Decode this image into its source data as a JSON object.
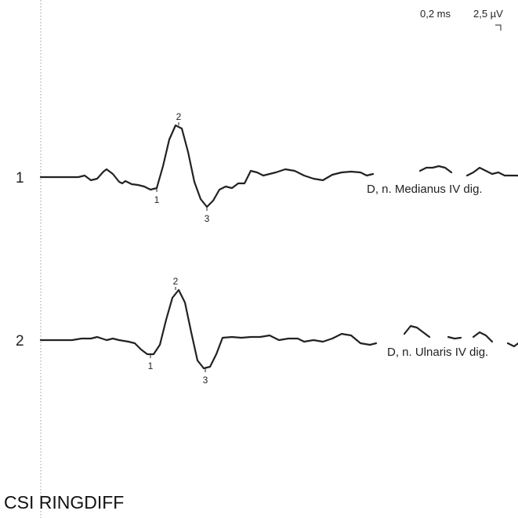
{
  "chart_data": {
    "type": "line",
    "title": "CSI RINGDIFF",
    "scale": {
      "time_per_div": "0,2 ms",
      "amplitude_per_div": "2,5 µV"
    },
    "series": [
      {
        "channel": "1",
        "name": "D, n. Medianus IV dig.",
        "x": [
          0,
          0.24,
          0.28,
          0.32,
          0.36,
          0.4,
          0.42,
          0.46,
          0.5,
          0.52,
          0.54,
          0.58,
          0.62,
          0.66,
          0.7,
          0.74,
          0.78,
          0.82,
          0.86,
          0.9,
          0.94,
          0.98,
          1.02,
          1.06,
          1.1,
          1.14,
          1.18,
          1.22,
          1.26,
          1.3,
          1.34,
          1.38,
          1.42,
          1.46,
          1.5,
          1.56,
          1.62,
          1.68,
          1.74,
          1.8,
          1.86,
          1.92,
          1.98,
          2.04,
          2.08,
          2.12
        ],
        "y": [
          0,
          0,
          0.08,
          -0.16,
          -0.08,
          0.28,
          0.4,
          0.16,
          -0.24,
          -0.32,
          -0.2,
          -0.36,
          -0.4,
          -0.48,
          -0.64,
          -0.56,
          0.56,
          1.92,
          2.64,
          2.48,
          1.28,
          -0.24,
          -1.12,
          -1.52,
          -1.2,
          -0.64,
          -0.48,
          -0.56,
          -0.32,
          -0.32,
          0.32,
          0.24,
          0.08,
          0.16,
          0.24,
          0.4,
          0.32,
          0.08,
          -0.08,
          -0.16,
          0.12,
          0.24,
          0.28,
          0.24,
          0.08,
          0.16
        ],
        "peaks": [
          {
            "label": "1",
            "x": 0.74,
            "y": -0.56
          },
          {
            "label": "2",
            "x": 0.88,
            "y": 2.64
          },
          {
            "label": "3",
            "x": 1.06,
            "y": -1.52
          }
        ]
      },
      {
        "channel": "2",
        "name": "D, n. Ulnaris IV dig.",
        "x": [
          0,
          0.1,
          0.2,
          0.26,
          0.32,
          0.36,
          0.42,
          0.46,
          0.5,
          0.56,
          0.6,
          0.64,
          0.68,
          0.72,
          0.76,
          0.8,
          0.84,
          0.88,
          0.92,
          0.96,
          1,
          1.04,
          1.08,
          1.12,
          1.16,
          1.22,
          1.28,
          1.34,
          1.4,
          1.46,
          1.52,
          1.58,
          1.64,
          1.68,
          1.74,
          1.8,
          1.86,
          1.92,
          1.98,
          2.04,
          2.1,
          2.14
        ],
        "y": [
          0,
          0,
          0,
          0.08,
          0.08,
          0.16,
          0,
          0.08,
          0,
          -0.08,
          -0.16,
          -0.48,
          -0.72,
          -0.72,
          -0.24,
          1.04,
          2.16,
          2.56,
          1.92,
          0.4,
          -1.04,
          -1.44,
          -1.36,
          -0.72,
          0.12,
          0.16,
          0.12,
          0.16,
          0.16,
          0.24,
          0,
          0.08,
          0.08,
          -0.08,
          0,
          -0.08,
          0.08,
          0.32,
          0.24,
          -0.16,
          -0.24,
          -0.16
        ],
        "peaks": [
          {
            "label": "1",
            "x": 0.7,
            "y": -0.72
          },
          {
            "label": "2",
            "x": 0.86,
            "y": 2.56
          },
          {
            "label": "3",
            "x": 1.05,
            "y": -1.44
          }
        ]
      }
    ],
    "extra_segments": [
      {
        "channel": "1",
        "x": [
          2.42,
          2.46,
          2.5,
          2.54,
          2.58,
          2.62
        ],
        "y": [
          0.32,
          0.48,
          0.48,
          0.56,
          0.48,
          0.24
        ]
      },
      {
        "channel": "1",
        "x": [
          2.72,
          2.76,
          2.8,
          2.84,
          2.88,
          2.92,
          2.96,
          3.0,
          3.04,
          3.08
        ],
        "y": [
          0.08,
          0.24,
          0.48,
          0.32,
          0.16,
          0.24,
          0.08,
          0.08,
          0.08,
          0
        ]
      },
      {
        "channel": "2",
        "x": [
          2.32,
          2.36,
          2.4,
          2.44,
          2.48
        ],
        "y": [
          0.32,
          0.72,
          0.64,
          0.4,
          0.16
        ]
      },
      {
        "channel": "2",
        "x": [
          2.6,
          2.64,
          2.68
        ],
        "y": [
          0.16,
          0.08,
          0.12
        ]
      },
      {
        "channel": "2",
        "x": [
          2.76,
          2.8,
          2.84,
          2.88
        ],
        "y": [
          0.16,
          0.4,
          0.24,
          -0.08
        ]
      },
      {
        "channel": "2",
        "x": [
          2.98,
          3.02,
          3.06
        ],
        "y": [
          -0.16,
          -0.32,
          -0.08
        ]
      }
    ]
  }
}
